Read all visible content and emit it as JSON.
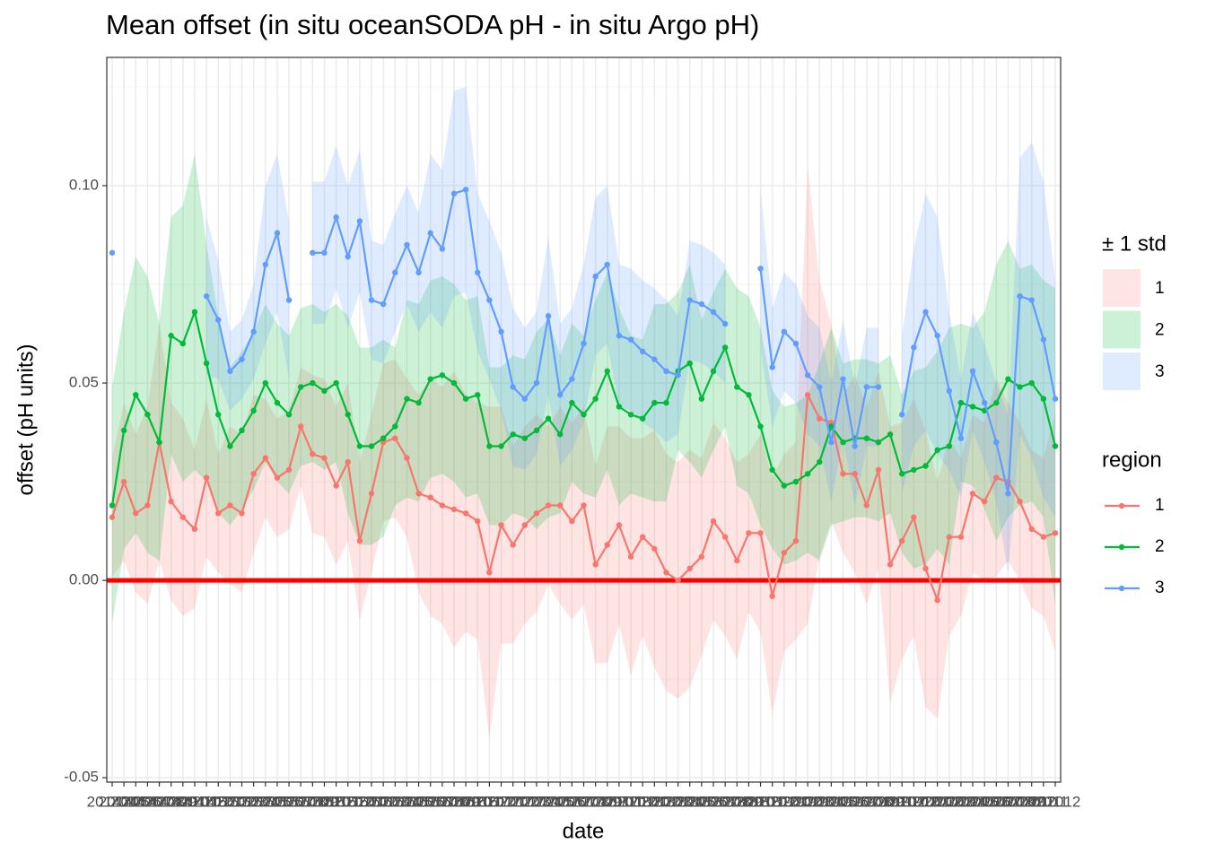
{
  "chart_data": {
    "type": "line",
    "title": "Mean offset (in situ oceanSODA pH - in situ Argo pH)",
    "x_label": "date",
    "y_label": "offset (pH units)",
    "ribbon_legend_title": "± 1 std",
    "legend_title": "region",
    "categories": [
      "201404",
      "201405",
      "201406",
      "201407",
      "201408",
      "201409",
      "201410",
      "201411",
      "201412",
      "201501",
      "201502",
      "201503",
      "201504",
      "201505",
      "201506",
      "201507",
      "201508",
      "201509",
      "201510",
      "201511",
      "201512",
      "201601",
      "201602",
      "201603",
      "201604",
      "201605",
      "201606",
      "201607",
      "201608",
      "201609",
      "201610",
      "201611",
      "201612",
      "201701",
      "201702",
      "201703",
      "201704",
      "201705",
      "201706",
      "201707",
      "201708",
      "201709",
      "201710",
      "201711",
      "201712",
      "201801",
      "201802",
      "201803",
      "201804",
      "201805",
      "201806",
      "201807",
      "201808",
      "201809",
      "201810",
      "201811",
      "201812",
      "201901",
      "201902",
      "201903",
      "201904",
      "201905",
      "201906",
      "201907",
      "201908",
      "201909",
      "201910",
      "201911",
      "201912",
      "202001",
      "202002",
      "202003",
      "202004",
      "202005",
      "202006",
      "202007",
      "202008",
      "202009",
      "202010",
      "202011",
      "202012"
    ],
    "series": [
      {
        "name": "1",
        "color": "#F8766D",
        "values": [
          0.016,
          0.025,
          0.017,
          0.019,
          0.035,
          0.02,
          0.016,
          0.013,
          0.026,
          0.017,
          0.019,
          0.017,
          0.027,
          0.031,
          0.026,
          0.028,
          0.039,
          0.032,
          0.031,
          0.024,
          0.03,
          0.01,
          0.022,
          0.035,
          0.036,
          0.031,
          0.022,
          0.021,
          0.019,
          0.018,
          0.017,
          0.015,
          0.002,
          0.014,
          0.009,
          0.014,
          0.017,
          0.019,
          0.019,
          0.015,
          0.019,
          0.004,
          0.009,
          0.014,
          0.006,
          0.011,
          0.008,
          0.002,
          0.0,
          0.003,
          0.006,
          0.015,
          0.011,
          0.005,
          0.012,
          0.012,
          -0.004,
          0.007,
          0.01,
          0.047,
          0.041,
          0.04,
          0.027,
          0.027,
          0.019,
          0.028,
          0.004,
          0.01,
          0.016,
          0.003,
          -0.005,
          0.011,
          0.011,
          0.022,
          0.02,
          0.026,
          0.025,
          0.02,
          0.013,
          0.011,
          0.012
        ],
        "std": [
          0.015,
          0.02,
          0.02,
          0.025,
          0.03,
          0.025,
          0.025,
          0.02,
          0.02,
          0.015,
          0.02,
          0.02,
          0.02,
          0.015,
          0.015,
          0.015,
          0.015,
          0.02,
          0.02,
          0.02,
          0.02,
          0.02,
          0.02,
          0.02,
          0.02,
          0.02,
          0.025,
          0.03,
          0.03,
          0.035,
          0.03,
          0.03,
          0.042,
          0.03,
          0.025,
          0.025,
          0.025,
          0.02,
          0.025,
          0.025,
          0.025,
          0.025,
          0.03,
          0.025,
          0.03,
          0.025,
          0.03,
          0.03,
          0.03,
          0.03,
          0.025,
          0.025,
          0.025,
          0.025,
          0.02,
          0.025,
          0.03,
          0.025,
          0.025,
          0.058,
          0.035,
          0.025,
          0.02,
          0.025,
          0.025,
          0.025,
          0.035,
          0.03,
          0.03,
          0.035,
          0.03,
          0.025,
          0.02,
          0.02,
          0.02,
          0.025,
          0.02,
          0.02,
          0.02,
          0.02,
          0.03
        ]
      },
      {
        "name": "2",
        "color": "#00BA38",
        "values": [
          0.019,
          0.038,
          0.047,
          0.042,
          0.035,
          0.062,
          0.06,
          0.068,
          0.055,
          0.042,
          0.034,
          0.038,
          0.043,
          0.05,
          0.045,
          0.042,
          0.049,
          0.05,
          0.048,
          0.05,
          0.042,
          0.034,
          0.034,
          0.036,
          0.039,
          0.046,
          0.045,
          0.051,
          0.052,
          0.05,
          0.046,
          0.047,
          0.034,
          0.034,
          0.037,
          0.036,
          0.038,
          0.041,
          0.037,
          0.045,
          0.042,
          0.046,
          0.053,
          0.044,
          0.042,
          0.041,
          0.045,
          0.045,
          0.053,
          0.055,
          0.046,
          0.053,
          0.059,
          0.049,
          0.047,
          0.039,
          0.028,
          0.024,
          0.025,
          0.027,
          0.03,
          0.039,
          0.035,
          0.036,
          0.036,
          0.035,
          0.037,
          0.027,
          0.028,
          0.029,
          0.033,
          0.034,
          0.045,
          0.044,
          0.043,
          0.045,
          0.051,
          0.049,
          0.05,
          0.046,
          0.034
        ],
        "std": [
          0.03,
          0.03,
          0.035,
          0.035,
          0.03,
          0.03,
          0.035,
          0.04,
          0.03,
          0.025,
          0.02,
          0.02,
          0.02,
          0.02,
          0.02,
          0.02,
          0.02,
          0.02,
          0.02,
          0.02,
          0.025,
          0.025,
          0.025,
          0.025,
          0.02,
          0.025,
          0.025,
          0.025,
          0.025,
          0.025,
          0.025,
          0.025,
          0.02,
          0.02,
          0.02,
          0.02,
          0.025,
          0.025,
          0.02,
          0.02,
          0.02,
          0.025,
          0.025,
          0.025,
          0.02,
          0.02,
          0.025,
          0.025,
          0.02,
          0.025,
          0.02,
          0.02,
          0.02,
          0.025,
          0.025,
          0.025,
          0.02,
          0.02,
          0.02,
          0.02,
          0.025,
          0.025,
          0.02,
          0.02,
          0.02,
          0.02,
          0.02,
          0.02,
          0.025,
          0.025,
          0.025,
          0.03,
          0.02,
          0.02,
          0.025,
          0.035,
          0.035,
          0.03,
          0.03,
          0.03,
          0.04
        ]
      },
      {
        "name": "3",
        "color": "#619CFF",
        "values": [
          0.083,
          null,
          null,
          null,
          null,
          null,
          null,
          null,
          0.072,
          0.066,
          0.053,
          0.056,
          0.063,
          0.08,
          0.088,
          0.071,
          null,
          0.083,
          0.083,
          0.092,
          0.082,
          0.091,
          0.071,
          0.07,
          0.078,
          0.085,
          0.078,
          0.088,
          0.084,
          0.098,
          0.099,
          0.078,
          0.071,
          0.063,
          0.049,
          0.046,
          0.05,
          0.067,
          0.047,
          0.051,
          0.06,
          0.077,
          0.08,
          0.062,
          0.061,
          0.058,
          0.056,
          0.053,
          0.052,
          0.071,
          0.07,
          0.068,
          0.065,
          null,
          null,
          0.079,
          0.054,
          0.063,
          0.06,
          0.052,
          0.049,
          0.035,
          0.051,
          0.034,
          0.049,
          0.049,
          null,
          0.042,
          0.059,
          0.068,
          0.062,
          0.048,
          0.036,
          0.053,
          0.045,
          0.035,
          0.022,
          0.072,
          0.071,
          0.061,
          0.046
        ],
        "std": [
          0.015,
          null,
          null,
          null,
          null,
          null,
          null,
          null,
          0.02,
          0.015,
          0.01,
          0.01,
          0.012,
          0.02,
          0.02,
          0.02,
          null,
          0.018,
          0.018,
          0.018,
          0.018,
          0.018,
          0.015,
          0.015,
          0.015,
          0.015,
          0.015,
          0.02,
          0.02,
          0.026,
          0.026,
          0.02,
          0.02,
          0.02,
          0.02,
          0.018,
          0.018,
          0.02,
          0.018,
          0.018,
          0.02,
          0.02,
          0.02,
          0.018,
          0.018,
          0.018,
          0.018,
          0.018,
          0.015,
          0.015,
          0.015,
          0.015,
          0.015,
          null,
          null,
          0.02,
          0.015,
          0.015,
          0.015,
          0.015,
          0.015,
          0.015,
          0.015,
          0.015,
          0.015,
          0.015,
          null,
          0.02,
          0.025,
          0.03,
          0.03,
          0.02,
          0.015,
          0.015,
          0.015,
          0.015,
          0.02,
          0.035,
          0.04,
          0.04,
          0.03
        ]
      }
    ],
    "hline": {
      "value": 0,
      "color": "#FF0000"
    },
    "ylim": [
      -0.0511,
      0.1325
    ],
    "yticks": [
      {
        "value": -0.05,
        "label": "-0.05"
      },
      {
        "value": 0,
        "label": "0.00"
      },
      {
        "value": 0.05,
        "label": "0.05"
      },
      {
        "value": 0.1,
        "label": "0.10"
      }
    ],
    "grid": true
  }
}
